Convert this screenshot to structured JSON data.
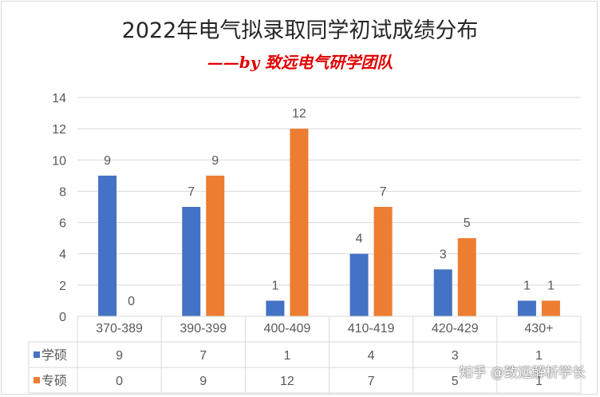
{
  "chart_data": {
    "type": "bar",
    "title": "2022年电气拟录取同学初试成绩分布",
    "subtitle": "——by 致远电气研学团队",
    "categories": [
      "370-389",
      "390-399",
      "400-409",
      "410-419",
      "420-429",
      "430+"
    ],
    "series": [
      {
        "name": "学硕",
        "values": [
          9,
          7,
          1,
          4,
          3,
          1
        ],
        "color": "#4472c4"
      },
      {
        "name": "专硕",
        "values": [
          0,
          9,
          12,
          7,
          5,
          1
        ],
        "color": "#ed7d31"
      }
    ],
    "ylim": [
      0,
      14
    ],
    "yticks": [
      0,
      2,
      4,
      6,
      8,
      10,
      12,
      14
    ],
    "grid": true,
    "legend": "data-table"
  },
  "watermark": "知乎 @致远解析学长",
  "colors": {
    "grid": "#d9d9d9",
    "text": "#595959"
  }
}
